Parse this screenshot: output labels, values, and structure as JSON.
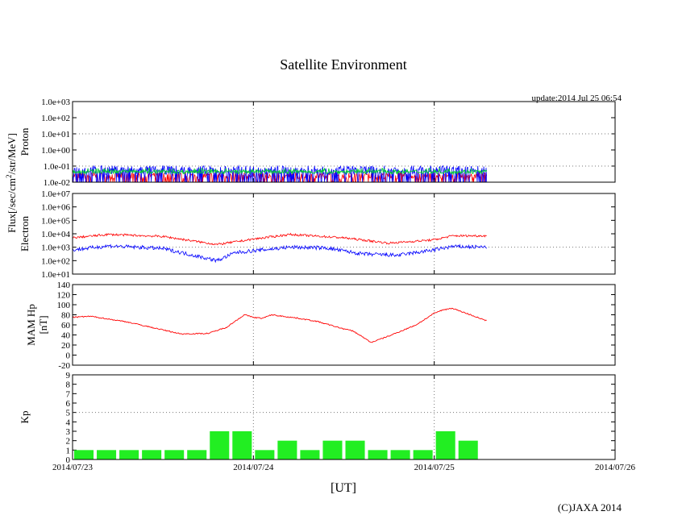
{
  "page": {
    "title": "Satellite Environment",
    "update": "update:2014 Jul 25 06:54",
    "copyright": "(C)JAXA 2014",
    "flux_label_prefix": "Flux[/sec/cm",
    "flux_label_sup": "2",
    "flux_label_suffix": "/str/MeV]"
  },
  "chart_data": {
    "type": "line",
    "xlabel": "[UT]",
    "x_ticks": [
      "2014/07/23",
      "2014/07/24",
      "2014/07/25",
      "2014/07/26"
    ],
    "x_range_days": [
      0,
      3
    ],
    "data_end_day": 2.29,
    "panels": [
      {
        "name": "proton",
        "ylabel": "Proton",
        "scale": "log",
        "ylim_exp": [
          -2,
          3
        ],
        "y_ticks": [
          "1.0e-02",
          "1.0e-01",
          "1.0e+00",
          "1.0e+01",
          "1.0e+02",
          "1.0e+03"
        ],
        "colors": {
          "red": "#ff0000",
          "blue": "#0000ff",
          "green": "#00cc33"
        },
        "levels_exp": {
          "red": -1.6,
          "blue": -1.25,
          "green": -1.35
        }
      },
      {
        "name": "electron",
        "ylabel": "Electron",
        "scale": "log",
        "ylim_exp": [
          1,
          7
        ],
        "y_ticks": [
          "1.0e+01",
          "1.0e+02",
          "1.0e+03",
          "1.0e+04",
          "1.0e+05",
          "1.0e+06",
          "1.0e+07"
        ],
        "series": [
          {
            "color": "#ff0000",
            "t": [
              0,
              0.2,
              0.5,
              0.8,
              1.0,
              1.2,
              1.5,
              1.75,
              2.0,
              2.1,
              2.29
            ],
            "exp": [
              3.7,
              3.95,
              3.8,
              3.2,
              3.6,
              3.95,
              3.7,
              3.3,
              3.55,
              3.85,
              3.85
            ]
          },
          {
            "color": "#0000ff",
            "t": [
              0,
              0.2,
              0.5,
              0.7,
              0.8,
              0.9,
              1.2,
              1.4,
              1.6,
              1.8,
              2.0,
              2.1,
              2.29
            ],
            "exp": [
              2.8,
              3.1,
              2.9,
              2.3,
              2.0,
              2.6,
              3.0,
              2.95,
              2.5,
              2.4,
              2.8,
              3.05,
              3.0
            ]
          }
        ]
      },
      {
        "name": "mam-hp",
        "ylabel": "MAM Hp",
        "ylabel2": "[nT]",
        "scale": "linear",
        "ylim": [
          -20,
          140
        ],
        "y_ticks": [
          "-20",
          "0",
          "20",
          "40",
          "60",
          "80",
          "100",
          "120",
          "140"
        ],
        "color": "#ff0000",
        "t": [
          0,
          0.1,
          0.3,
          0.5,
          0.6,
          0.75,
          0.85,
          0.95,
          1.0,
          1.05,
          1.1,
          1.25,
          1.35,
          1.45,
          1.5,
          1.55,
          1.6,
          1.65,
          1.75,
          1.9,
          2.0,
          2.05,
          2.1,
          2.2,
          2.29
        ],
        "values": [
          75,
          77,
          66,
          50,
          42,
          43,
          55,
          80,
          75,
          73,
          80,
          73,
          67,
          57,
          52,
          48,
          37,
          25,
          38,
          60,
          83,
          90,
          93,
          80,
          68
        ]
      },
      {
        "name": "kp",
        "ylabel": "Kp",
        "scale": "linear",
        "ylim": [
          0,
          9
        ],
        "y_ticks": [
          "0",
          "1",
          "2",
          "3",
          "4",
          "5",
          "6",
          "7",
          "8",
          "9"
        ],
        "color": "#22ee22",
        "bar_width_days": 0.125,
        "bars": [
          1,
          1,
          1,
          1,
          1,
          1,
          3,
          3,
          1,
          2,
          1,
          2,
          2,
          1,
          1,
          1,
          3,
          2
        ]
      }
    ]
  }
}
